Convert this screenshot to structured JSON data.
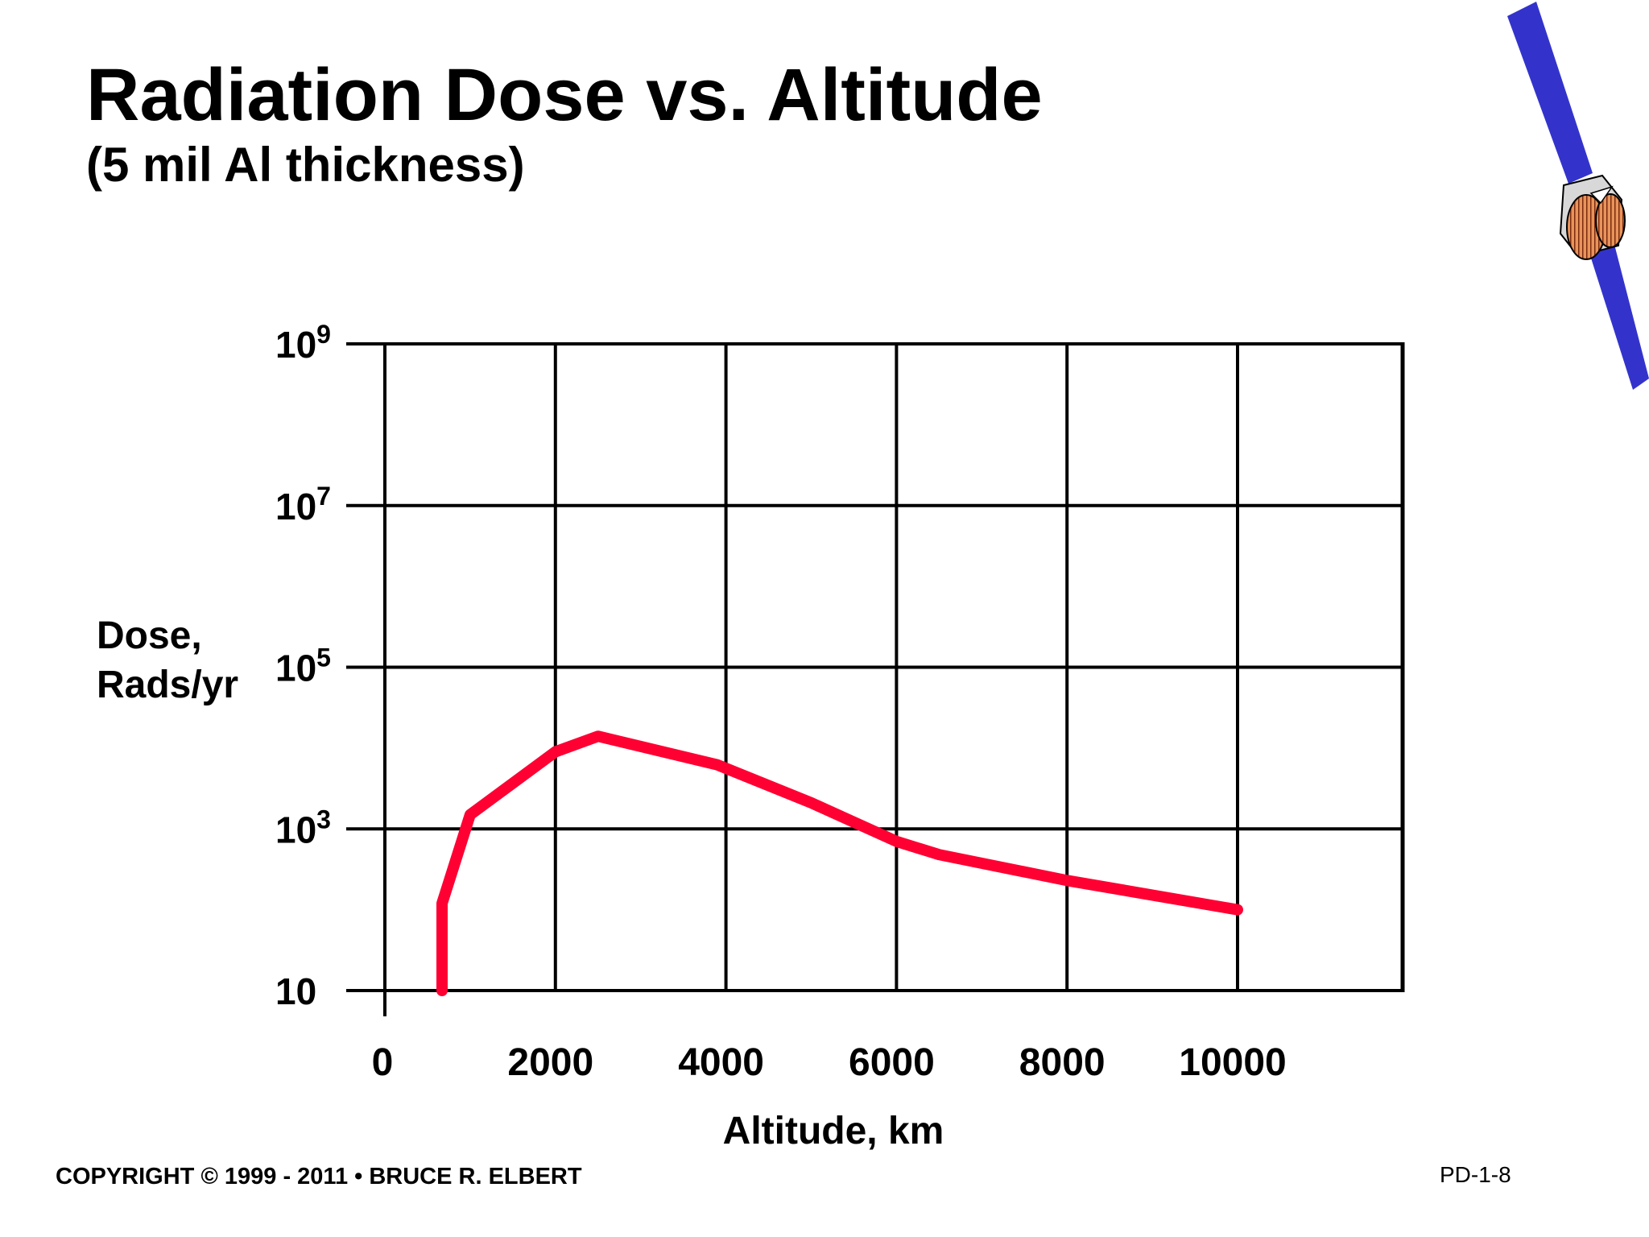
{
  "slide": {
    "title": "Radiation Dose vs. Altitude",
    "subtitle": "(5 mil Al thickness)",
    "copyright": "COPYRIGHT © 1999 - 2011 • BRUCE R. ELBERT",
    "page_id": "PD-1-8"
  },
  "chart_data": {
    "type": "line",
    "title": "Radiation Dose vs. Altitude",
    "subtitle": "(5 mil Al thickness)",
    "xlabel": "Altitude, km",
    "ylabel_lines": [
      "Dose,",
      "Rads/yr"
    ],
    "x_scale": "linear",
    "y_scale": "log",
    "xlim": [
      0,
      12000
    ],
    "ylim": [
      10,
      1000000000
    ],
    "x_ticks": [
      0,
      2000,
      4000,
      6000,
      8000,
      10000
    ],
    "x_tick_labels": [
      "0",
      "2000",
      "4000",
      "6000",
      "8000",
      "10000"
    ],
    "y_ticks": [
      {
        "value": 10,
        "base": "10",
        "exp": ""
      },
      {
        "value": 1000,
        "base": "10",
        "exp": "3"
      },
      {
        "value": 100000,
        "base": "10",
        "exp": "5"
      },
      {
        "value": 10000000,
        "base": "10",
        "exp": "7"
      },
      {
        "value": 1000000000,
        "base": "10",
        "exp": "9"
      }
    ],
    "grid": true,
    "series": [
      {
        "name": "Dose (5 mil Al)",
        "color": "#ff0033",
        "x": [
          670,
          670,
          1000,
          2000,
          2500,
          3900,
          5000,
          6000,
          6500,
          8000,
          10000
        ],
        "y": [
          10,
          120,
          1500,
          9000,
          14000,
          6200,
          2100,
          700,
          480,
          230,
          100
        ]
      }
    ]
  },
  "colors": {
    "grid": "#000000",
    "series": "#ff0033",
    "panel": "#3333cc",
    "dish": "#e8945a"
  }
}
